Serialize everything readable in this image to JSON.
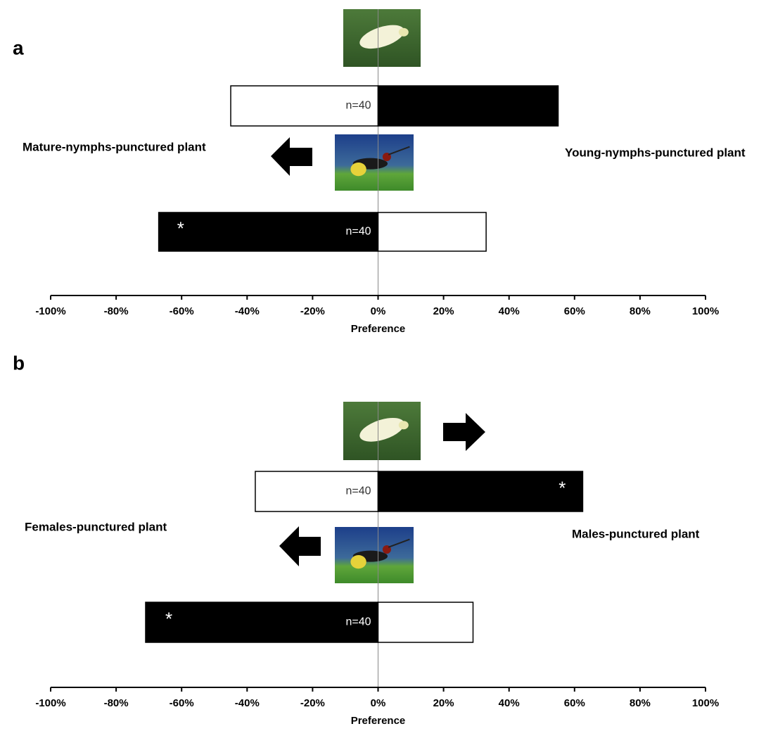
{
  "chart_data": [
    {
      "type": "diverging-bar",
      "panel_label": "a",
      "xlabel": "Preference",
      "left_label": "Mature-nymphs-punctured plant",
      "right_label": "Young-nymphs-punctured plant",
      "xlim": [
        -100,
        100
      ],
      "xticks": [
        {
          "value": -100,
          "label": "-100%"
        },
        {
          "value": -80,
          "label": "-80%"
        },
        {
          "value": -60,
          "label": "-60%"
        },
        {
          "value": -40,
          "label": "-40%"
        },
        {
          "value": -20,
          "label": "-20%"
        },
        {
          "value": 0,
          "label": "0%"
        },
        {
          "value": 20,
          "label": "20%"
        },
        {
          "value": 40,
          "label": "40%"
        },
        {
          "value": 60,
          "label": "60%"
        },
        {
          "value": 80,
          "label": "80%"
        },
        {
          "value": 100,
          "label": "100%"
        }
      ],
      "categories": [
        null,
        null
      ],
      "n_labels": [
        "n=40",
        "n=40"
      ],
      "series": [
        {
          "values": [
            -45,
            -67
          ],
          "colors": [
            "#ffffff",
            "#000000"
          ],
          "annotations": [
            null,
            "*"
          ]
        },
        {
          "values": [
            55,
            33
          ],
          "colors": [
            "#000000",
            "#ffffff"
          ],
          "annotations": [
            null,
            null
          ]
        }
      ]
    },
    {
      "type": "diverging-bar",
      "panel_label": "b",
      "xlabel": "Preference",
      "left_label": "Females-punctured plant",
      "right_label": "Males-punctured plant",
      "xlim": [
        -100,
        100
      ],
      "xticks": [
        {
          "value": -100,
          "label": "-100%"
        },
        {
          "value": -80,
          "label": "-80%"
        },
        {
          "value": -60,
          "label": "-60%"
        },
        {
          "value": -40,
          "label": "-40%"
        },
        {
          "value": -20,
          "label": "-20%"
        },
        {
          "value": 0,
          "label": "0%"
        },
        {
          "value": 20,
          "label": "20%"
        },
        {
          "value": 40,
          "label": "40%"
        },
        {
          "value": 60,
          "label": "60%"
        },
        {
          "value": 80,
          "label": "80%"
        },
        {
          "value": 100,
          "label": "100%"
        }
      ],
      "categories": [
        null,
        null
      ],
      "n_labels": [
        "n=40",
        "n=40"
      ],
      "series": [
        {
          "values": [
            -37.5,
            -71
          ],
          "colors": [
            "#ffffff",
            "#000000"
          ],
          "annotations": [
            null,
            "*"
          ]
        },
        {
          "values": [
            62.5,
            29
          ],
          "colors": [
            "#000000",
            "#ffffff"
          ],
          "annotations": [
            "*",
            null
          ]
        }
      ]
    }
  ]
}
